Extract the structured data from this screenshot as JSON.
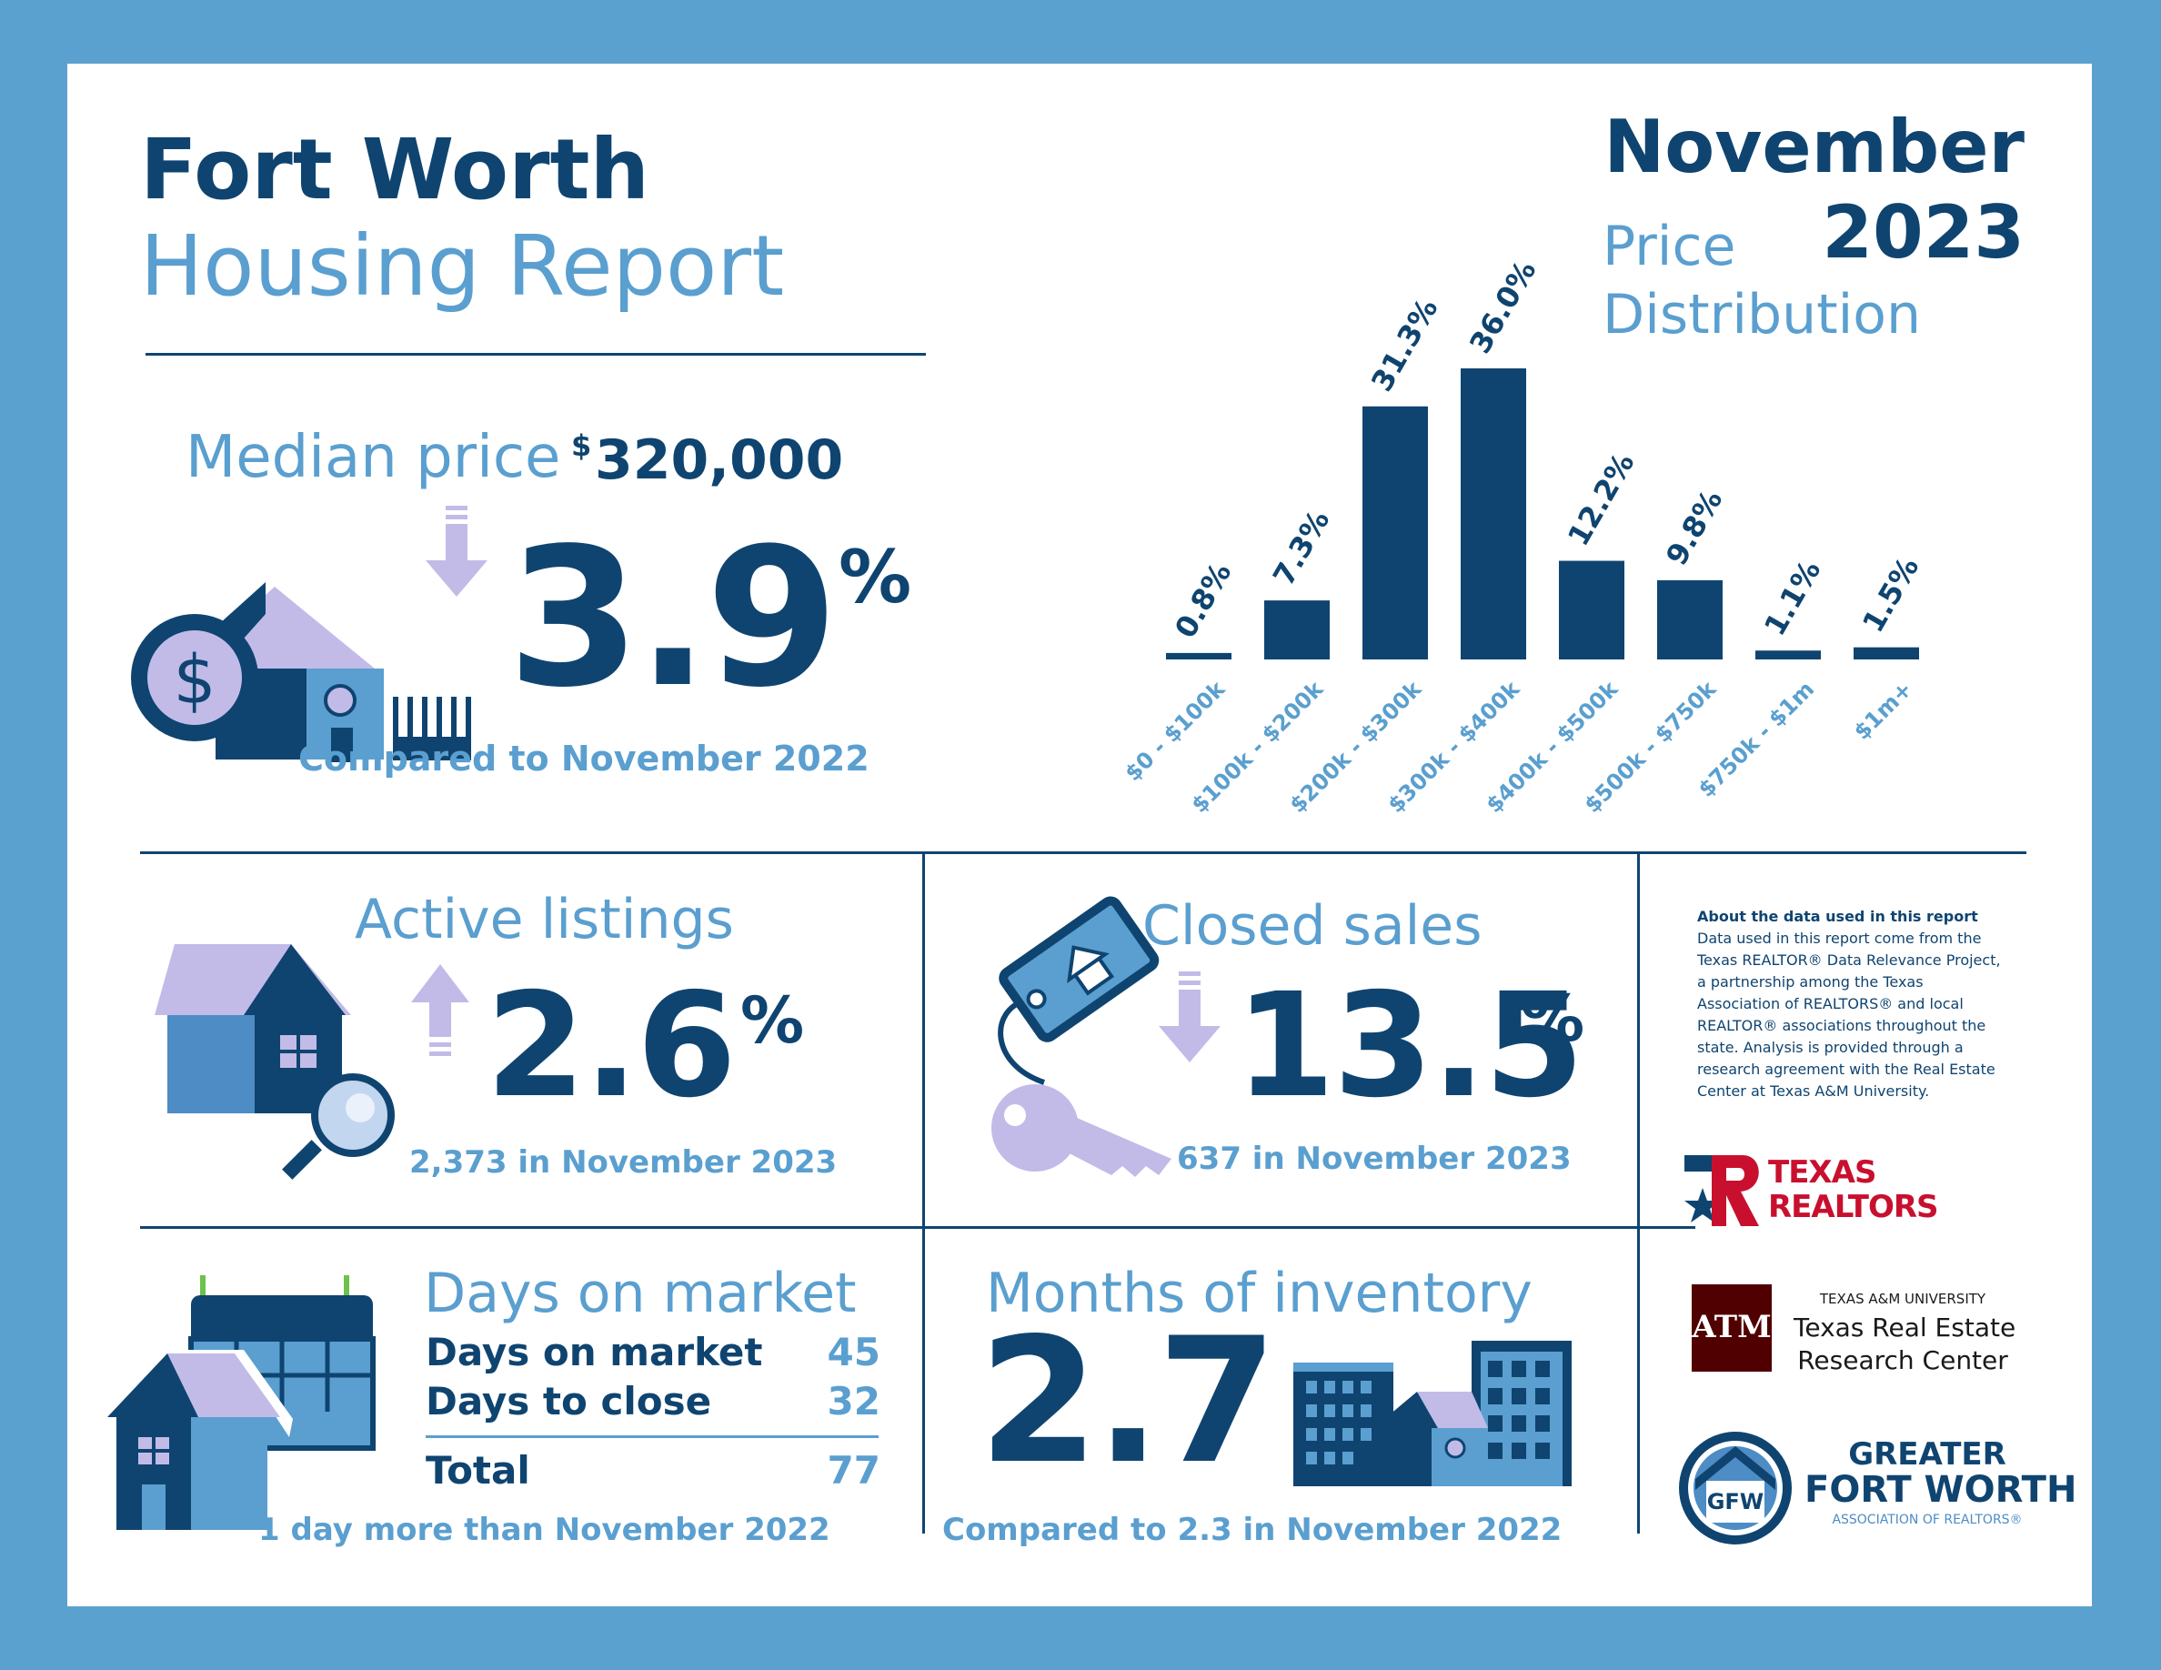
{
  "header": {
    "title_line1": "Fort Worth",
    "title_line2": "Housing Report",
    "month": "November",
    "year": "2023"
  },
  "median_price": {
    "label": "Median price",
    "currency": "$",
    "value": "320,000",
    "change_number": "3.9",
    "change_unit": "%",
    "direction": "down",
    "comparison": "Compared to November 2022",
    "icons": [
      "house-icon",
      "dollar-coin-icon",
      "fence-icon",
      "down-arrow-icon"
    ]
  },
  "price_distribution": {
    "title_line1": "Price",
    "title_line2": "Distribution"
  },
  "chart_data": {
    "type": "bar",
    "categories": [
      "$0 - $100k",
      "$100k - $200k",
      "$200k - $300k",
      "$300k - $400k",
      "$400k - $500k",
      "$500k - $750k",
      "$750k - $1m",
      "$1m+"
    ],
    "values": [
      0.8,
      7.3,
      31.3,
      36.0,
      12.2,
      9.8,
      1.1,
      1.5
    ],
    "value_labels": [
      "0.8%",
      "7.3%",
      "31.3%",
      "36.0%",
      "12.2%",
      "9.8%",
      "1.1%",
      "1.5%"
    ],
    "ylim": [
      0,
      36.0
    ],
    "grid": false,
    "bar_color": "#0f4470",
    "label_color": "#5a9fcf"
  },
  "active_listings": {
    "label": "Active listings",
    "change_number": "2.6",
    "change_unit": "%",
    "direction": "up",
    "detail": "2,373 in November 2023"
  },
  "closed_sales": {
    "label": "Closed sales",
    "change_number": "13.5",
    "change_unit": "%",
    "direction": "down",
    "detail": "637 in November 2023"
  },
  "days_on_market": {
    "label": "Days on market",
    "rows": [
      {
        "label": "Days on market",
        "value": "45"
      },
      {
        "label": "Days to close",
        "value": "32"
      }
    ],
    "total_label": "Total",
    "total_value": "77",
    "comparison": "1 day more than November 2022"
  },
  "months_inventory": {
    "label": "Months of inventory",
    "value": "2.7",
    "comparison": "Compared to 2.3 in November 2022"
  },
  "about": {
    "title": "About the data used in this report",
    "lines": [
      "Data used in this report come from the",
      "Texas REALTOR® Data Relevance Project,",
      "a partnership among the Texas",
      "Association of REALTORS® and local",
      "REALTOR® associations throughout the",
      "state. Analysis is provided through a",
      "research agreement with the Real Estate",
      "Center at Texas A&M University."
    ]
  },
  "logos": {
    "texas_realtors": {
      "line1": "TEXAS",
      "line2": "REALTORS"
    },
    "tamu": {
      "mark": "ATM",
      "line1": "TEXAS A&M UNIVERSITY",
      "line2": "Texas Real Estate",
      "line3": "Research Center"
    },
    "gfw": {
      "mark": "GFW",
      "line1": "GREATER",
      "line2": "FORT WORTH",
      "line3": "ASSOCIATION OF REALTORS®"
    }
  },
  "colors": {
    "frame": "#5ba1cf",
    "navy": "#0f4470",
    "light_blue": "#5a9fcf",
    "lavender": "#c2bbe8",
    "mid_blue": "#4d8cc4",
    "tx_red": "#c8102e",
    "tamu_maroon": "#500000"
  }
}
